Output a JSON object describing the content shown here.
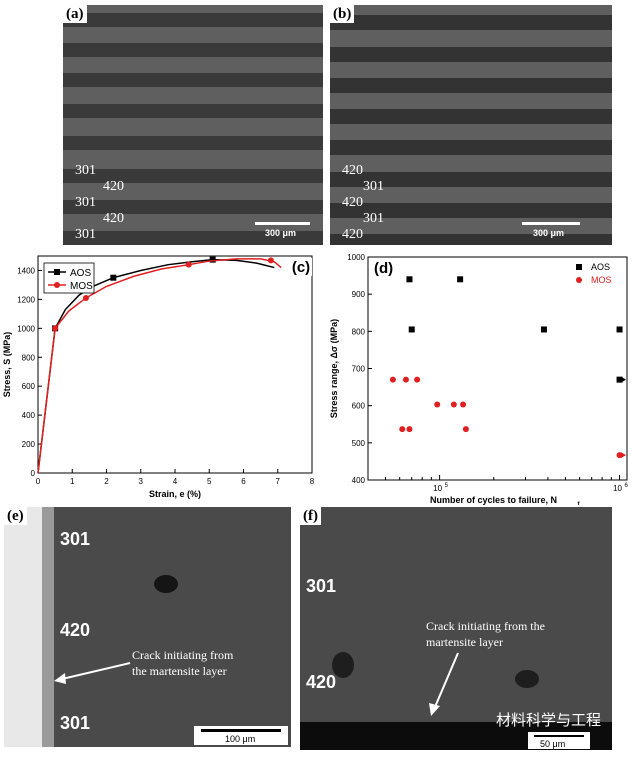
{
  "panel_a": {
    "tag": "(a)",
    "layers": [
      "301",
      "420",
      "301",
      "420",
      "301"
    ],
    "scale": "300 μm"
  },
  "panel_b": {
    "tag": "(b)",
    "layers": [
      "420",
      "301",
      "420",
      "301",
      "420"
    ],
    "scale": "300 μm"
  },
  "panel_c": {
    "tag": "(c)",
    "chart_data": {
      "type": "line",
      "xlabel": "Strain, e (%)",
      "ylabel": "Stress, S (MPa)",
      "xlim": [
        0,
        8
      ],
      "ylim": [
        0,
        1500
      ],
      "xticks": [
        "0",
        "1",
        "2",
        "3",
        "4",
        "5",
        "6",
        "7",
        "8"
      ],
      "yticks": [
        "0",
        "200",
        "400",
        "600",
        "800",
        "1000",
        "1200",
        "1400"
      ],
      "legend": "top-left",
      "series": [
        {
          "name": "AOS",
          "color": "#000000",
          "marker": "square",
          "x": [
            0,
            0.5,
            0.8,
            1.2,
            1.6,
            2.2,
            3.0,
            3.8,
            4.5,
            5.1,
            5.8,
            6.4,
            6.9
          ],
          "y": [
            0,
            1000,
            1130,
            1230,
            1290,
            1350,
            1400,
            1440,
            1460,
            1475,
            1470,
            1450,
            1420
          ],
          "markers_x": [
            0.5,
            2.2,
            5.1
          ],
          "markers_y": [
            1000,
            1350,
            1475
          ]
        },
        {
          "name": "MOS",
          "color": "#e02020",
          "marker": "circle",
          "x": [
            0,
            0.5,
            0.9,
            1.4,
            2.0,
            2.8,
            3.6,
            4.4,
            5.0,
            5.8,
            6.5,
            6.9,
            7.1
          ],
          "y": [
            0,
            1000,
            1120,
            1210,
            1290,
            1360,
            1410,
            1440,
            1465,
            1480,
            1480,
            1460,
            1420
          ],
          "markers_x": [
            0.5,
            1.4,
            4.4,
            6.8
          ],
          "markers_y": [
            1000,
            1210,
            1440,
            1470
          ]
        }
      ]
    }
  },
  "panel_d": {
    "tag": "(d)",
    "chart_data": {
      "type": "scatter",
      "xlabel": "Number of cycles to failure, N",
      "xlabel_sub": "f",
      "ylabel": "Stress range, Δσ (MPa)",
      "xscale": "log",
      "xlim": [
        40000,
        1100000
      ],
      "ylim": [
        400,
        1000
      ],
      "xticks": [
        "10",
        "10"
      ],
      "xtick_exponents": [
        "5",
        "6"
      ],
      "yticks": [
        "400",
        "500",
        "600",
        "700",
        "800",
        "900",
        "1000"
      ],
      "legend": "top-right",
      "series": [
        {
          "name": "AOS",
          "color": "#000000",
          "marker": "square",
          "x": [
            68000,
            130000,
            70000,
            380000,
            1000000,
            1000000
          ],
          "y": [
            940,
            940,
            805,
            805,
            805,
            670
          ]
        },
        {
          "name": "MOS",
          "color": "#e02020",
          "marker": "circle",
          "x": [
            55000,
            65000,
            75000,
            62000,
            68000,
            97000,
            120000,
            135000,
            140000,
            1000000
          ],
          "y": [
            670,
            670,
            670,
            537,
            537,
            603,
            603,
            603,
            537,
            467
          ]
        }
      ],
      "runouts": [
        {
          "x": 1000000,
          "y": 670,
          "color": "#000000"
        },
        {
          "x": 1000000,
          "y": 467,
          "color": "#e02020"
        }
      ]
    }
  },
  "panel_e": {
    "tag": "(e)",
    "labels": [
      "301",
      "420",
      "301"
    ],
    "annotation_line1": "Crack initiating  from",
    "annotation_line2": "the martensite layer",
    "scale": "100 μm"
  },
  "panel_f": {
    "tag": "(f)",
    "labels": [
      "301",
      "420"
    ],
    "annotation_line1": "Crack initiating  from the",
    "annotation_line2": "martensite layer",
    "scale": "50 μm",
    "watermark": "材料科学与工程"
  }
}
